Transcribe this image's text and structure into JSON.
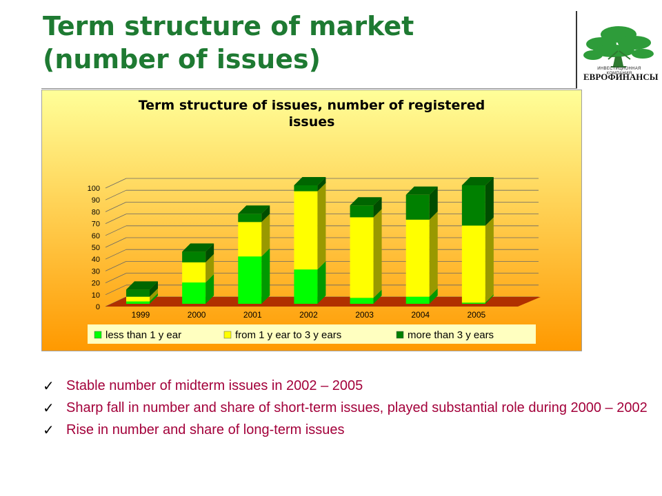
{
  "slide": {
    "title_lines": [
      "Term structure of market",
      "(number of issues)"
    ],
    "logo": {
      "caption": "ИНВЕСТИЦИОННАЯ КОМПАНИЯ",
      "name": "ЕВРОФИНАНСЫ",
      "icon": "tree-icon",
      "color": "#2e9c3a"
    },
    "bullets": [
      "Stable number of midterm issues in 2002 – 2005",
      "Sharp fall in number and share of short-term issues, played substantial role during 2000 – 2002",
      "Rise in number and share of long-term issues"
    ]
  },
  "chart_data": {
    "type": "bar",
    "stacked": true,
    "three_d": true,
    "title_lines": [
      "Term structure of issues, number of registered",
      "issues"
    ],
    "categories": [
      "1999",
      "2000",
      "2001",
      "2002",
      "2003",
      "2004",
      "2005"
    ],
    "series": [
      {
        "name": "less than 1 y ear",
        "color": "#00ff00",
        "values": [
          2,
          18,
          40,
          29,
          5,
          6,
          1
        ]
      },
      {
        "name": "from 1 y ear to 3 y ears",
        "color": "#ffff00",
        "values": [
          4,
          17,
          29,
          66,
          68,
          65,
          65
        ]
      },
      {
        "name": "more than 3 y ears",
        "color": "#008000",
        "values": [
          6,
          9,
          7,
          5,
          10,
          21,
          34
        ]
      }
    ],
    "yticks": [
      "0",
      "10",
      "20",
      "30",
      "40",
      "50",
      "60",
      "70",
      "80",
      "90",
      "100"
    ],
    "ylim": [
      0,
      100
    ],
    "grid": true,
    "legend_position": "bottom",
    "background_gradient": [
      "#ffff99",
      "#ff9900"
    ],
    "floor_color": "#b03000"
  }
}
